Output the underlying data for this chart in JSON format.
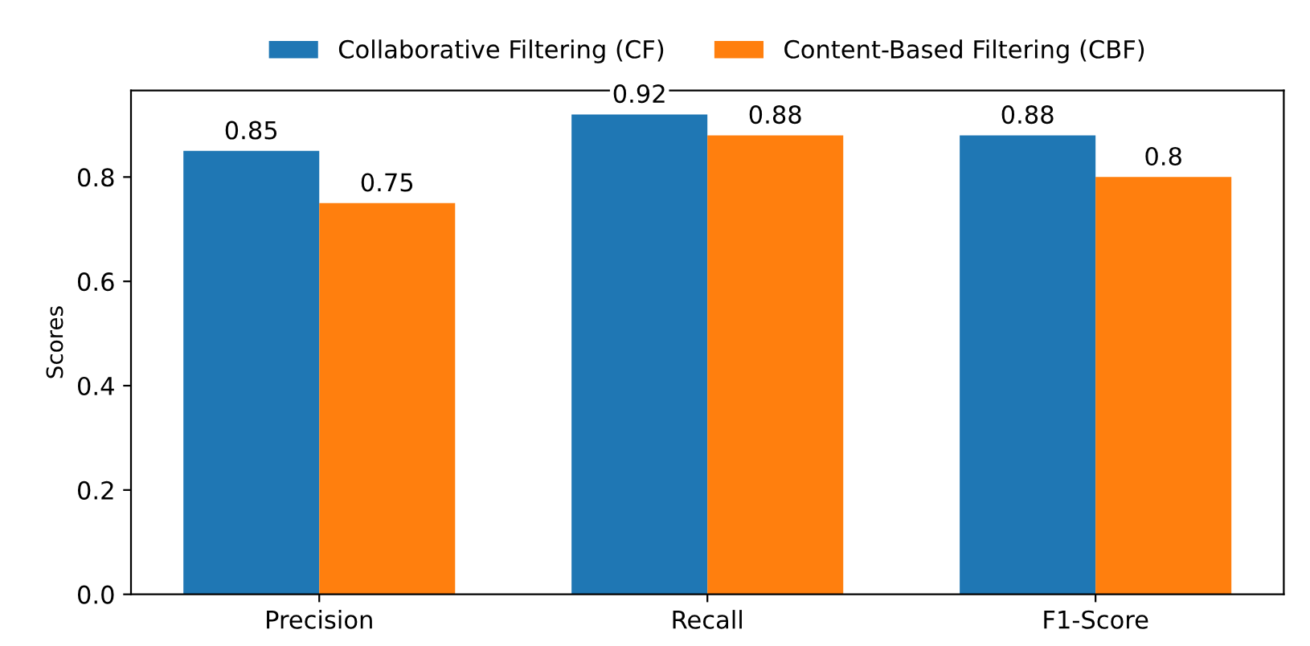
{
  "chart_data": {
    "type": "bar",
    "ylabel": "Scores",
    "categories": [
      "Precision",
      "Recall",
      "F1-Score"
    ],
    "series": [
      {
        "name": "Collaborative Filtering (CF)",
        "color": "#1f77b4",
        "values": [
          0.85,
          0.92,
          0.88
        ]
      },
      {
        "name": "Content-Based Filtering (CBF)",
        "color": "#ff7f0e",
        "values": [
          0.75,
          0.88,
          0.8
        ]
      }
    ],
    "ylim": [
      0,
      0.966
    ],
    "yticks": [
      {
        "value": 0,
        "label": "0.0"
      },
      0.2,
      0.4,
      0.6,
      0.8
    ],
    "data_labels": true,
    "grid": false,
    "legend": "top"
  }
}
